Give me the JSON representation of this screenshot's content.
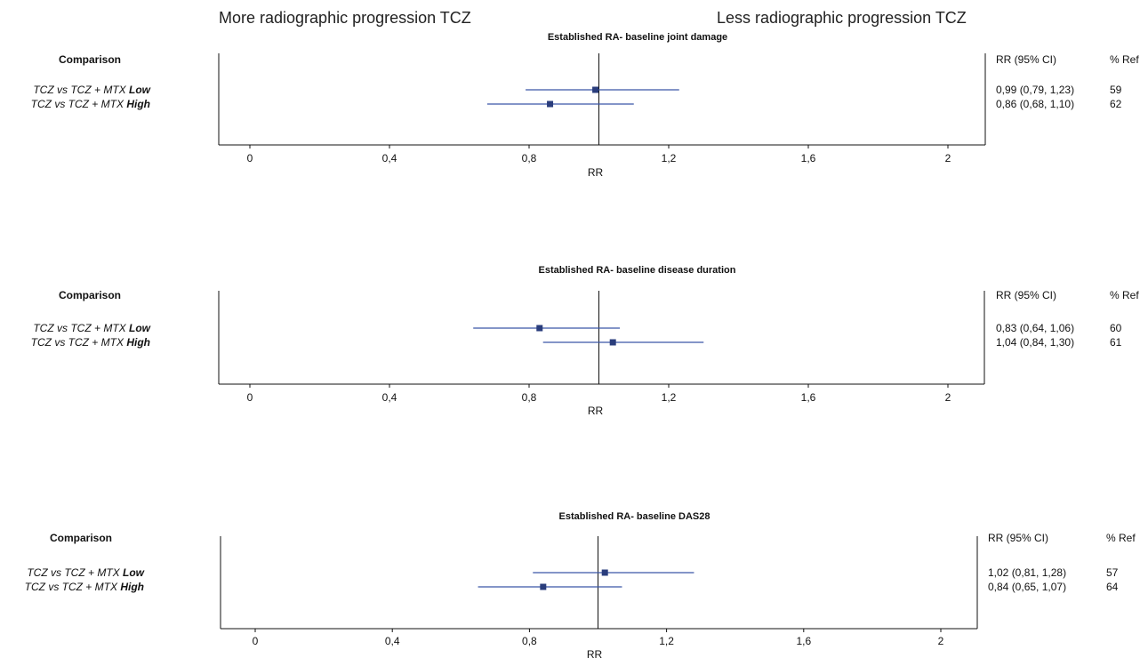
{
  "header": {
    "left_label": "More radiographic progression TCZ",
    "right_label": "Less radiographic progression TCZ"
  },
  "columns": {
    "comparison": "Comparison",
    "rr_ci": "RR (95% CI)",
    "pct_ref": "% Ref"
  },
  "colors": {
    "ci_line": "#3a56a6",
    "marker": "#2a3d7c",
    "axis": "#111111"
  },
  "chart_data": [
    {
      "type": "forest",
      "title": "Established RA- baseline joint damage",
      "xlabel": "RR",
      "xlim": [
        -0.1,
        2.1
      ],
      "ticks": [
        0,
        0.4,
        0.8,
        1.2,
        1.6,
        2
      ],
      "tick_labels": [
        "0",
        "0,4",
        "0,8",
        "1,2",
        "1,6",
        "2"
      ],
      "reference": 1,
      "rows": [
        {
          "label_main": "TCZ vs TCZ + MTX",
          "label_group": "Low",
          "rr": 0.99,
          "lo": 0.79,
          "hi": 1.23,
          "rr_text": "0,99  (0,79,  1,23)",
          "pct_ref": "59"
        },
        {
          "label_main": "TCZ vs TCZ + MTX",
          "label_group": "High",
          "rr": 0.86,
          "lo": 0.68,
          "hi": 1.1,
          "rr_text": "0,86  (0,68,  1,10)",
          "pct_ref": "62"
        }
      ]
    },
    {
      "type": "forest",
      "title": "Established RA- baseline disease duration",
      "xlabel": "RR",
      "xlim": [
        -0.1,
        2.1
      ],
      "ticks": [
        0,
        0.4,
        0.8,
        1.2,
        1.6,
        2
      ],
      "tick_labels": [
        "0",
        "0,4",
        "0,8",
        "1,2",
        "1,6",
        "2"
      ],
      "reference": 1,
      "rows": [
        {
          "label_main": "TCZ vs TCZ + MTX",
          "label_group": "Low",
          "rr": 0.83,
          "lo": 0.64,
          "hi": 1.06,
          "rr_text": "0,83  (0,64,  1,06)",
          "pct_ref": "60"
        },
        {
          "label_main": "TCZ vs TCZ + MTX",
          "label_group": "High",
          "rr": 1.04,
          "lo": 0.84,
          "hi": 1.3,
          "rr_text": "1,04  (0,84,  1,30)",
          "pct_ref": "61"
        }
      ]
    },
    {
      "type": "forest",
      "title": "Established RA- baseline DAS28",
      "xlabel": "RR",
      "xlim": [
        -0.1,
        2.1
      ],
      "ticks": [
        0,
        0.4,
        0.8,
        1.2,
        1.6,
        2
      ],
      "tick_labels": [
        "0",
        "0,4",
        "0,8",
        "1,2",
        "1,6",
        "2"
      ],
      "reference": 1,
      "rows": [
        {
          "label_main": "TCZ vs TCZ + MTX",
          "label_group": "Low",
          "rr": 1.02,
          "lo": 0.81,
          "hi": 1.28,
          "rr_text": "1,02  (0,81,  1,28)",
          "pct_ref": "57"
        },
        {
          "label_main": "TCZ vs TCZ + MTX",
          "label_group": "High",
          "rr": 0.84,
          "lo": 0.65,
          "hi": 1.07,
          "rr_text": "0,84  (0,65,  1,07)",
          "pct_ref": "64"
        }
      ]
    }
  ]
}
